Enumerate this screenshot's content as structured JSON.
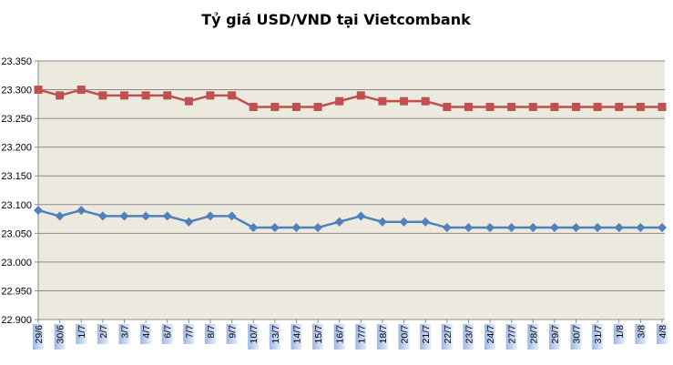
{
  "chart_data": {
    "type": "line",
    "title": "Tỷ giá USD/VND tại Vietcombank",
    "xlabel": "",
    "ylabel": "",
    "ylim": [
      22.9,
      23.35
    ],
    "ytick_step": 0.05,
    "ytick_labels": [
      "22.900",
      "22.950",
      "23.000",
      "23.050",
      "23.100",
      "23.150",
      "23.200",
      "23.250",
      "23.300",
      "23.350"
    ],
    "grid": true,
    "legend": "none",
    "categories": [
      "29/6",
      "30/6",
      "1/7",
      "2/7",
      "3/7",
      "4/7",
      "6/7",
      "7/7",
      "8/7",
      "9/7",
      "10/7",
      "13/7",
      "14/7",
      "15/7",
      "16/7",
      "17/7",
      "18/7",
      "20/7",
      "21/7",
      "22/7",
      "23/7",
      "24/7",
      "27/7",
      "28/7",
      "29/7",
      "30/7",
      "31/7",
      "1/8",
      "3/8",
      "4/8"
    ],
    "series": [
      {
        "color": "#C0504D",
        "marker": "square",
        "values": [
          23.3,
          23.29,
          23.3,
          23.29,
          23.29,
          23.29,
          23.29,
          23.28,
          23.29,
          23.29,
          23.27,
          23.27,
          23.27,
          23.27,
          23.28,
          23.29,
          23.28,
          23.28,
          23.28,
          23.27,
          23.27,
          23.27,
          23.27,
          23.27,
          23.27,
          23.27,
          23.27,
          23.27,
          23.27,
          23.27
        ]
      },
      {
        "color": "#4F81BD",
        "marker": "diamond",
        "values": [
          23.09,
          23.08,
          23.09,
          23.08,
          23.08,
          23.08,
          23.08,
          23.07,
          23.08,
          23.08,
          23.06,
          23.06,
          23.06,
          23.06,
          23.07,
          23.08,
          23.07,
          23.07,
          23.07,
          23.06,
          23.06,
          23.06,
          23.06,
          23.06,
          23.06,
          23.06,
          23.06,
          23.06,
          23.06,
          23.06
        ]
      }
    ]
  }
}
